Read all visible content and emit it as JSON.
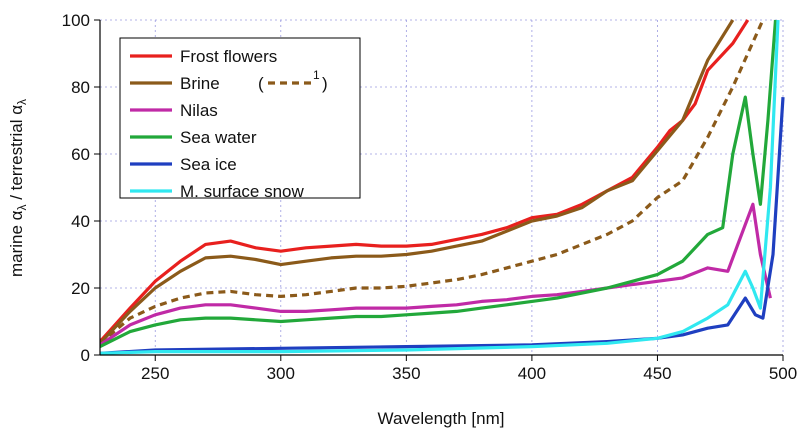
{
  "chart_data": {
    "type": "line",
    "xlabel": "Wavelength [nm]",
    "ylabel": [
      "marine α",
      "λ",
      " / terrestrial α",
      "λ"
    ],
    "xlim": [
      228,
      500
    ],
    "ylim": [
      0,
      100
    ],
    "xticks": [
      250,
      300,
      350,
      400,
      450,
      500
    ],
    "yticks": [
      0,
      20,
      40,
      60,
      80,
      100
    ],
    "grid": true,
    "legend_brackets": [
      "(",
      ")"
    ],
    "series": [
      {
        "name": "Frost flowers",
        "color": "#e8201e",
        "x": [
          228,
          240,
          250,
          260,
          270,
          280,
          290,
          300,
          310,
          320,
          330,
          340,
          350,
          360,
          370,
          380,
          390,
          400,
          410,
          420,
          430,
          440,
          450,
          455,
          460,
          465,
          470,
          480,
          486
        ],
        "values": [
          4,
          14,
          22,
          28,
          33,
          34,
          32,
          31,
          32,
          32.5,
          33,
          32.5,
          32.5,
          33,
          34.5,
          36,
          38,
          41,
          42,
          45,
          49,
          53,
          62,
          67,
          70,
          75,
          85,
          93,
          100
        ]
      },
      {
        "name": "Brine",
        "color": "#8b5a1a",
        "x": [
          228,
          240,
          250,
          260,
          270,
          280,
          290,
          300,
          310,
          320,
          330,
          340,
          350,
          360,
          370,
          380,
          390,
          400,
          410,
          420,
          430,
          440,
          450,
          460,
          470,
          480
        ],
        "values": [
          3.5,
          13,
          20,
          25,
          29,
          29.5,
          28.5,
          27,
          28,
          29,
          29.5,
          29.5,
          30,
          31,
          32.5,
          34,
          37,
          40,
          41.5,
          44,
          49,
          52,
          61,
          70,
          88,
          100
        ]
      },
      {
        "name": "1",
        "color": "#8b5a1a",
        "dash": true,
        "x": [
          228,
          240,
          250,
          260,
          270,
          280,
          290,
          300,
          310,
          320,
          330,
          340,
          350,
          360,
          370,
          380,
          390,
          400,
          410,
          420,
          430,
          440,
          450,
          460,
          470,
          480,
          492
        ],
        "values": [
          3.5,
          11,
          14.5,
          17,
          18.5,
          19,
          18,
          17.5,
          18,
          19,
          20,
          20,
          20.5,
          21.5,
          22.5,
          24,
          26,
          28,
          30,
          33,
          36,
          40,
          47,
          52,
          65,
          80,
          100
        ]
      },
      {
        "name": "Nilas",
        "color": "#c02aa6",
        "x": [
          228,
          240,
          250,
          260,
          270,
          280,
          290,
          300,
          310,
          320,
          330,
          340,
          350,
          360,
          370,
          380,
          390,
          400,
          410,
          420,
          430,
          440,
          450,
          460,
          470,
          478,
          483,
          488,
          491,
          495
        ],
        "values": [
          3,
          9,
          12,
          14,
          15,
          15,
          14,
          13,
          13,
          13.5,
          14,
          14,
          14,
          14.5,
          15,
          16,
          16.5,
          17.5,
          18,
          19,
          20,
          21,
          22,
          23,
          26,
          25,
          35,
          45,
          30,
          17
        ]
      },
      {
        "name": "Sea water",
        "color": "#22a83a",
        "x": [
          228,
          240,
          250,
          260,
          270,
          280,
          290,
          300,
          310,
          320,
          330,
          340,
          350,
          360,
          370,
          380,
          390,
          400,
          410,
          420,
          430,
          440,
          450,
          460,
          470,
          476,
          480,
          485,
          488,
          491,
          494,
          497
        ],
        "values": [
          2.5,
          7,
          9,
          10.5,
          11,
          11,
          10.5,
          10,
          10.5,
          11,
          11.5,
          11.5,
          12,
          12.5,
          13,
          14,
          15,
          16,
          17,
          18.5,
          20,
          22,
          24,
          28,
          36,
          38,
          60,
          77,
          60,
          45,
          70,
          100
        ]
      },
      {
        "name": "Sea ice",
        "color": "#1f3fc0",
        "x": [
          228,
          250,
          300,
          350,
          400,
          430,
          450,
          460,
          470,
          478,
          485,
          489,
          492,
          496,
          500
        ],
        "values": [
          0.5,
          1.5,
          2,
          2.5,
          3,
          4,
          5,
          6,
          8,
          9,
          17,
          12,
          11,
          30,
          77
        ]
      },
      {
        "name": "M. surface snow",
        "color": "#30e8f0",
        "x": [
          228,
          250,
          300,
          350,
          400,
          430,
          450,
          460,
          470,
          478,
          485,
          488,
          491,
          495,
          498
        ],
        "values": [
          0.5,
          1,
          1,
          1.5,
          2.5,
          3.5,
          5,
          7,
          11,
          15,
          25,
          20,
          14,
          50,
          100
        ]
      }
    ]
  }
}
